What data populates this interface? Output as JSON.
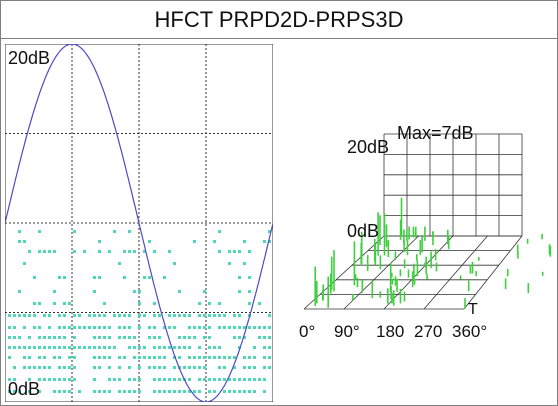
{
  "window": {
    "title": "HFCT PRPD2D-PRPS3D"
  },
  "prpd": {
    "top_label": "20dB",
    "bottom_label": "0dB",
    "colors": {
      "grid": "#333333",
      "sine": "#4b4bc8",
      "dots": "#4fd8b8"
    }
  },
  "prps": {
    "max_label": "Max=7dB",
    "z_top_label": "20dB",
    "z_bottom_label": "0dB",
    "phase_ticks": [
      "0°",
      "90°",
      "180",
      "270",
      "360°"
    ],
    "time_label": "T",
    "colors": {
      "grid": "#333333",
      "bars": "#3fcf3f"
    }
  }
}
